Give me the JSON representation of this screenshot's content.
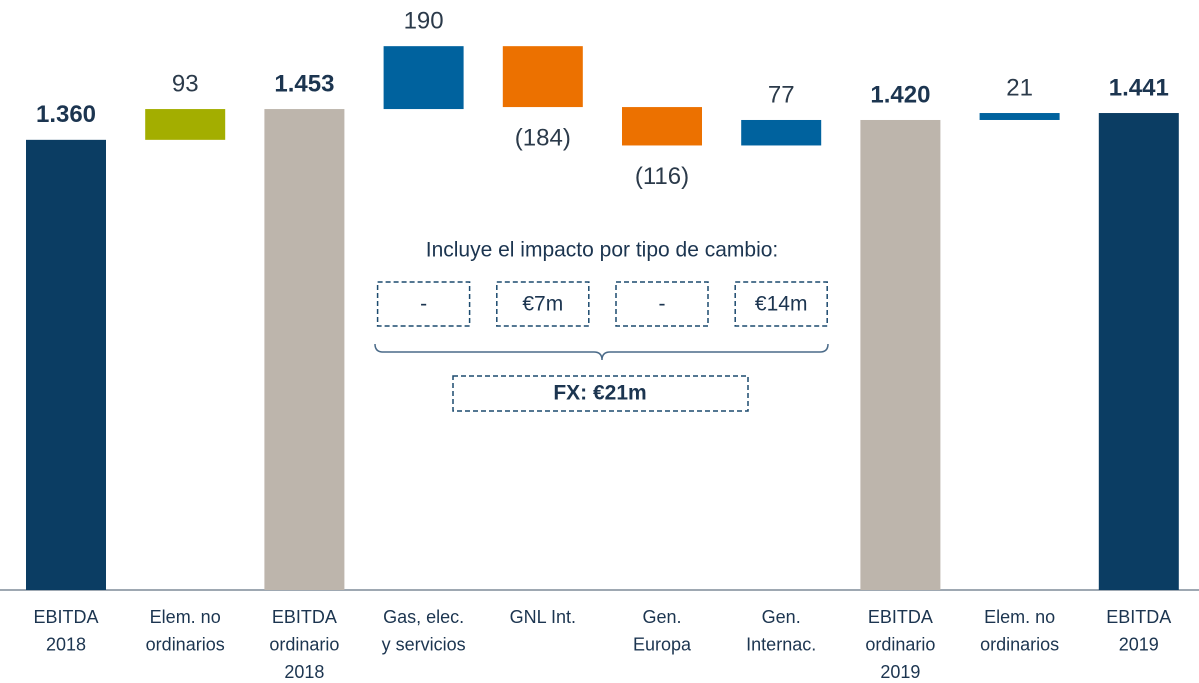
{
  "chart_data": {
    "type": "waterfall",
    "categories": [
      [
        "EBITDA",
        "2018"
      ],
      [
        "Elem. no",
        "ordinarios"
      ],
      [
        "EBITDA",
        "ordinario",
        "2018"
      ],
      [
        "Gas, elec.",
        "y servicios"
      ],
      [
        "GNL Int."
      ],
      [
        "Gen.",
        "Europa"
      ],
      [
        "Gen.",
        "Internac."
      ],
      [
        "EBITDA",
        "ordinario",
        "2019"
      ],
      [
        "Elem. no",
        "ordinarios"
      ],
      [
        "EBITDA",
        "2019"
      ]
    ],
    "values": [
      1360,
      93,
      1453,
      190,
      -184,
      -116,
      77,
      1420,
      21,
      1441
    ],
    "value_labels": [
      "1.360",
      "93",
      "1.453",
      "190",
      "(184)",
      "(116)",
      "77",
      "1.420",
      "21",
      "1.441"
    ],
    "kinds": [
      "total",
      "delta",
      "total",
      "delta",
      "delta",
      "delta",
      "delta",
      "total",
      "delta",
      "total"
    ],
    "colors": [
      "#0b3d63",
      "#a3ae00",
      "#bdb5ac",
      "#00629e",
      "#ec7100",
      "#ec7100",
      "#00629e",
      "#bdb5ac",
      "#00629e",
      "#0b3d63"
    ],
    "fx_note": {
      "title": "Incluye el impacto por tipo de cambio:",
      "items": [
        "-",
        "€7m",
        "-",
        "€14m"
      ],
      "total": "FX: €21m"
    }
  }
}
